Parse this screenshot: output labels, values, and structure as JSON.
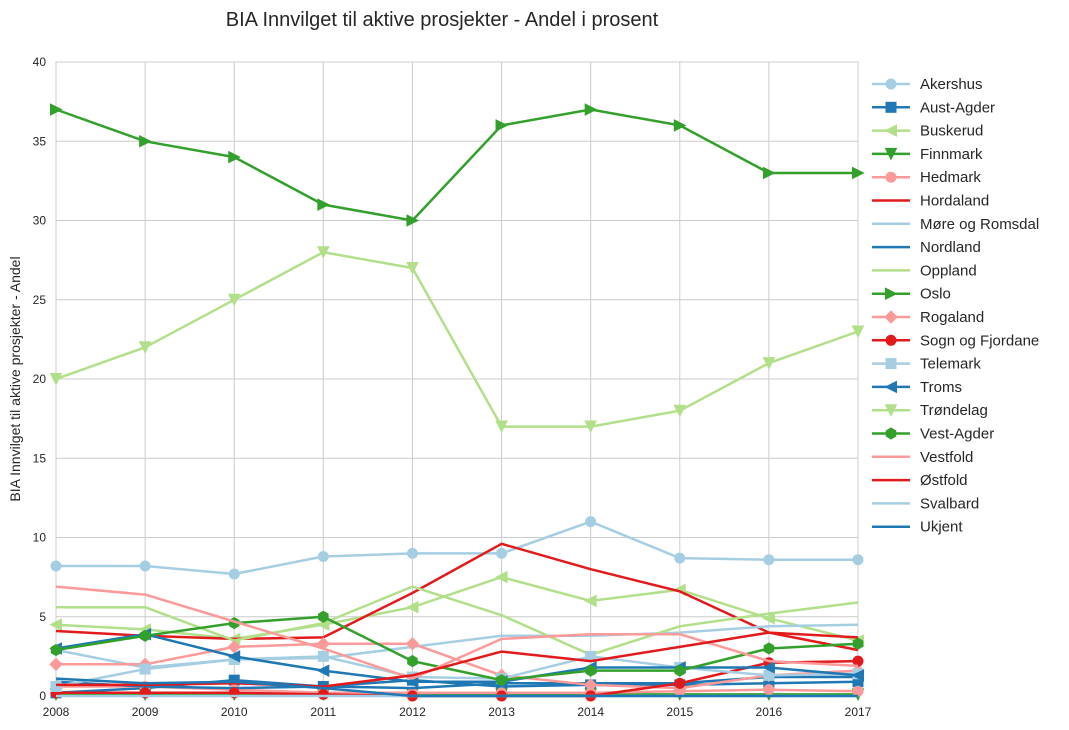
{
  "chart_data": {
    "type": "line",
    "title": "BIA Innvilget til aktive prosjekter - Andel i prosent",
    "xlabel": "",
    "ylabel": "BIA Innvilget til aktive prosjekter - Andel",
    "x": [
      2008,
      2009,
      2010,
      2011,
      2012,
      2013,
      2014,
      2015,
      2016,
      2017
    ],
    "xlim": [
      2008,
      2017
    ],
    "ylim": [
      0,
      40
    ],
    "yticks": [
      0,
      5,
      10,
      15,
      20,
      25,
      30,
      35,
      40
    ],
    "grid": true,
    "legend_position": "right",
    "series": [
      {
        "name": "Akershus",
        "color": "#a6cee3",
        "marker": "circle",
        "values": [
          8.2,
          8.2,
          7.7,
          8.8,
          9.0,
          9.0,
          11.0,
          8.7,
          8.6,
          8.6
        ]
      },
      {
        "name": "Aust-Agder",
        "color": "#1f78b4",
        "marker": "square",
        "values": [
          0.2,
          0.5,
          1.0,
          0.6,
          1.0,
          0.6,
          0.7,
          0.7,
          0.8,
          0.9
        ]
      },
      {
        "name": "Buskerud",
        "color": "#b2df8a",
        "marker": "triangle-left",
        "values": [
          4.5,
          4.2,
          3.6,
          4.5,
          5.6,
          7.5,
          6.0,
          6.7,
          4.9,
          3.5
        ]
      },
      {
        "name": "Finnmark",
        "color": "#33a02c",
        "marker": "triangle-down",
        "values": [
          0.1,
          0.1,
          0.1,
          0.1,
          0.1,
          0.1,
          0.1,
          0.1,
          0.1,
          0.1
        ]
      },
      {
        "name": "Hedmark",
        "color": "#fb9a99",
        "marker": "circle",
        "values": [
          0.6,
          0.6,
          0.4,
          0.2,
          0.2,
          0.2,
          0.2,
          0.3,
          0.4,
          0.3
        ]
      },
      {
        "name": "Hordaland",
        "color": "#e31a1c",
        "marker": "none",
        "values": [
          4.1,
          3.8,
          3.6,
          3.7,
          6.5,
          9.6,
          8.0,
          6.6,
          4.0,
          2.9
        ]
      },
      {
        "name": "Møre og Romsdal",
        "color": "#a6cee3",
        "marker": "none",
        "values": [
          2.9,
          1.8,
          2.3,
          2.4,
          3.1,
          3.8,
          3.8,
          4.0,
          4.4,
          4.5
        ]
      },
      {
        "name": "Nordland",
        "color": "#1f78b4",
        "marker": "none",
        "values": [
          0.9,
          0.6,
          0.5,
          0.6,
          0.5,
          0.8,
          0.8,
          0.8,
          1.2,
          1.2
        ]
      },
      {
        "name": "Oppland",
        "color": "#b2df8a",
        "marker": "none",
        "values": [
          5.6,
          5.6,
          3.5,
          4.6,
          6.9,
          5.1,
          2.6,
          4.4,
          5.2,
          5.9
        ]
      },
      {
        "name": "Oslo",
        "color": "#33a02c",
        "marker": "triangle-right",
        "values": [
          37,
          35,
          34,
          31,
          30,
          36,
          37,
          36,
          33,
          33
        ]
      },
      {
        "name": "Rogaland",
        "color": "#fb9a99",
        "marker": "diamond",
        "values": [
          2.0,
          2.0,
          3.1,
          3.3,
          3.3,
          1.3,
          0.7,
          0.5,
          1.3,
          1.6
        ]
      },
      {
        "name": "Sogn og Fjordane",
        "color": "#e31a1c",
        "marker": "circle",
        "values": [
          0.2,
          0.2,
          0.2,
          0.1,
          0.0,
          0.0,
          0.0,
          0.8,
          2.1,
          2.2
        ]
      },
      {
        "name": "Telemark",
        "color": "#a6cee3",
        "marker": "square",
        "values": [
          0.6,
          1.7,
          2.3,
          2.5,
          1.2,
          1.1,
          2.5,
          1.8,
          1.3,
          1.4
        ]
      },
      {
        "name": "Troms",
        "color": "#1f78b4",
        "marker": "triangle-left",
        "values": [
          3.0,
          3.9,
          2.5,
          1.6,
          0.9,
          0.9,
          1.8,
          1.8,
          1.8,
          1.3
        ]
      },
      {
        "name": "Trøndelag",
        "color": "#b2df8a",
        "marker": "triangle-down",
        "values": [
          20,
          22,
          25,
          28,
          27,
          17,
          17,
          18,
          21,
          23
        ]
      },
      {
        "name": "Vest-Agder",
        "color": "#33a02c",
        "marker": "hexagon",
        "values": [
          2.9,
          3.8,
          4.6,
          5.0,
          2.2,
          1.0,
          1.6,
          1.6,
          3.0,
          3.3
        ]
      },
      {
        "name": "Vestfold",
        "color": "#fb9a99",
        "marker": "none",
        "values": [
          6.9,
          6.4,
          4.7,
          3.0,
          1.1,
          3.6,
          3.9,
          3.9,
          2.2,
          1.9
        ]
      },
      {
        "name": "Østfold",
        "color": "#e31a1c",
        "marker": "none",
        "values": [
          0.7,
          0.7,
          0.8,
          0.6,
          1.3,
          2.8,
          2.2,
          3.1,
          4.0,
          3.7
        ]
      },
      {
        "name": "Svalbard",
        "color": "#a6cee3",
        "marker": "none",
        "values": [
          0.0,
          0.0,
          0.0,
          0.0,
          0.0,
          0.0,
          0.0,
          0.0,
          0.0,
          0.0
        ]
      },
      {
        "name": "Ukjent",
        "color": "#1f78b4",
        "marker": "none",
        "values": [
          1.1,
          0.8,
          0.9,
          0.5,
          0.0,
          0.0,
          0.0,
          0.0,
          0.0,
          0.0
        ]
      }
    ]
  }
}
